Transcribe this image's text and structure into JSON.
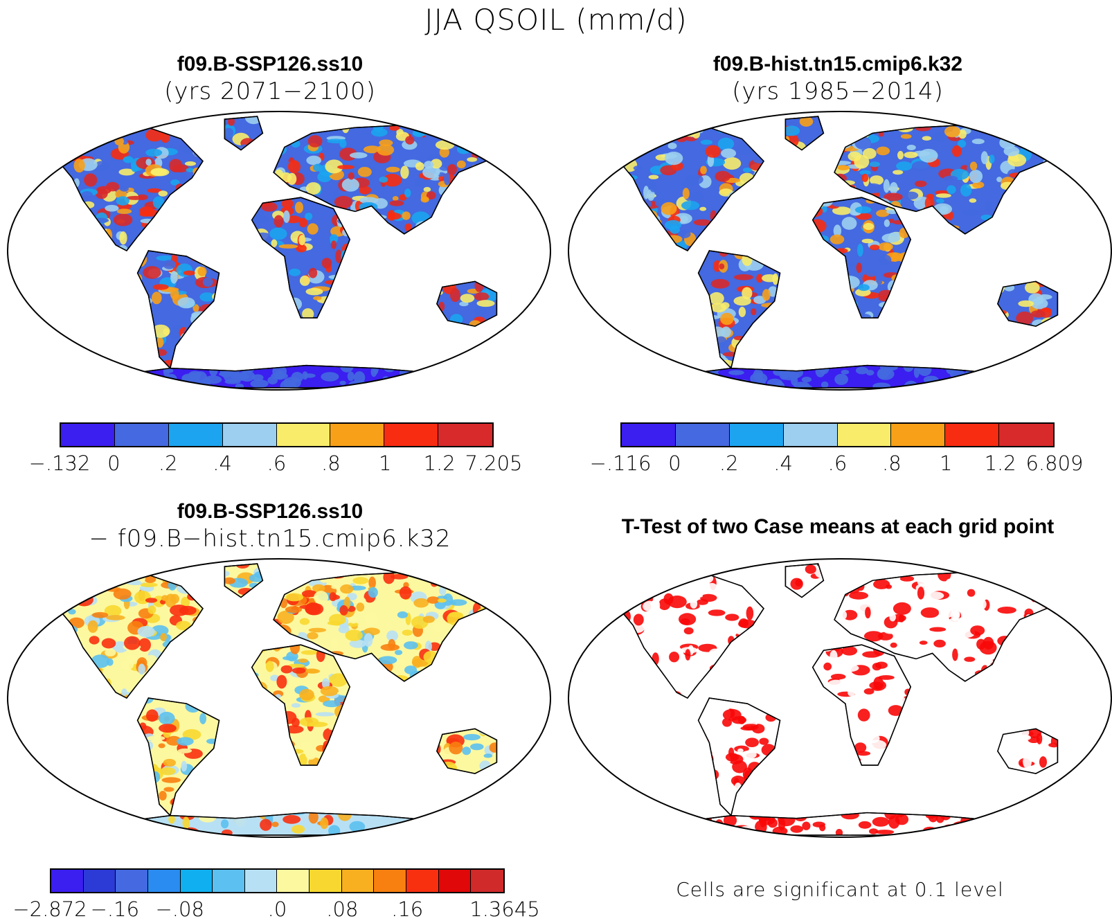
{
  "title": "JJA QSOIL (mm/d)",
  "panels": [
    {
      "title": "f09.B-SSP126.ss10",
      "subtitle": "(yrs 2071−2100)",
      "colorbar": {
        "colors": [
          "#3b1ef0",
          "#4469e0",
          "#1ca4f0",
          "#9ccff0",
          "#f8ec6a",
          "#f8a018",
          "#f82c10",
          "#d82a2a"
        ],
        "labels": [
          "−.132",
          "0",
          ".2",
          ".4",
          ".6",
          ".8",
          "1",
          "1.2",
          "7.205"
        ]
      }
    },
    {
      "title": "f09.B-hist.tn15.cmip6.k32",
      "subtitle": "(yrs 1985−2014)",
      "colorbar": {
        "colors": [
          "#3b1ef0",
          "#4469e0",
          "#1ca4f0",
          "#9ccff0",
          "#f8ec6a",
          "#f8a018",
          "#f82c10",
          "#d82a2a"
        ],
        "labels": [
          "−.116",
          "0",
          ".2",
          ".4",
          ".6",
          ".8",
          "1",
          "1.2",
          "6.809"
        ]
      }
    },
    {
      "title": "f09.B-SSP126.ss10",
      "subtitle": "− f09.B−hist.tn15.cmip6.k32",
      "colorbar": {
        "colors": [
          "#3b1ef0",
          "#2c3ad6",
          "#4469e0",
          "#2a8cf0",
          "#10b0f0",
          "#5cc0f0",
          "#b8e0f4",
          "#fcf8a0",
          "#f8d830",
          "#f8b020",
          "#f88010",
          "#f83010",
          "#e00808",
          "#d02a2a"
        ],
        "labels": [
          "−2.872",
          "−.16",
          "−.08",
          ".0",
          ".08",
          ".16",
          "1.3645"
        ]
      }
    },
    {
      "title": "T-Test of two Case means at each grid point",
      "note": "Cells are significant at 0.1 level"
    }
  ]
}
